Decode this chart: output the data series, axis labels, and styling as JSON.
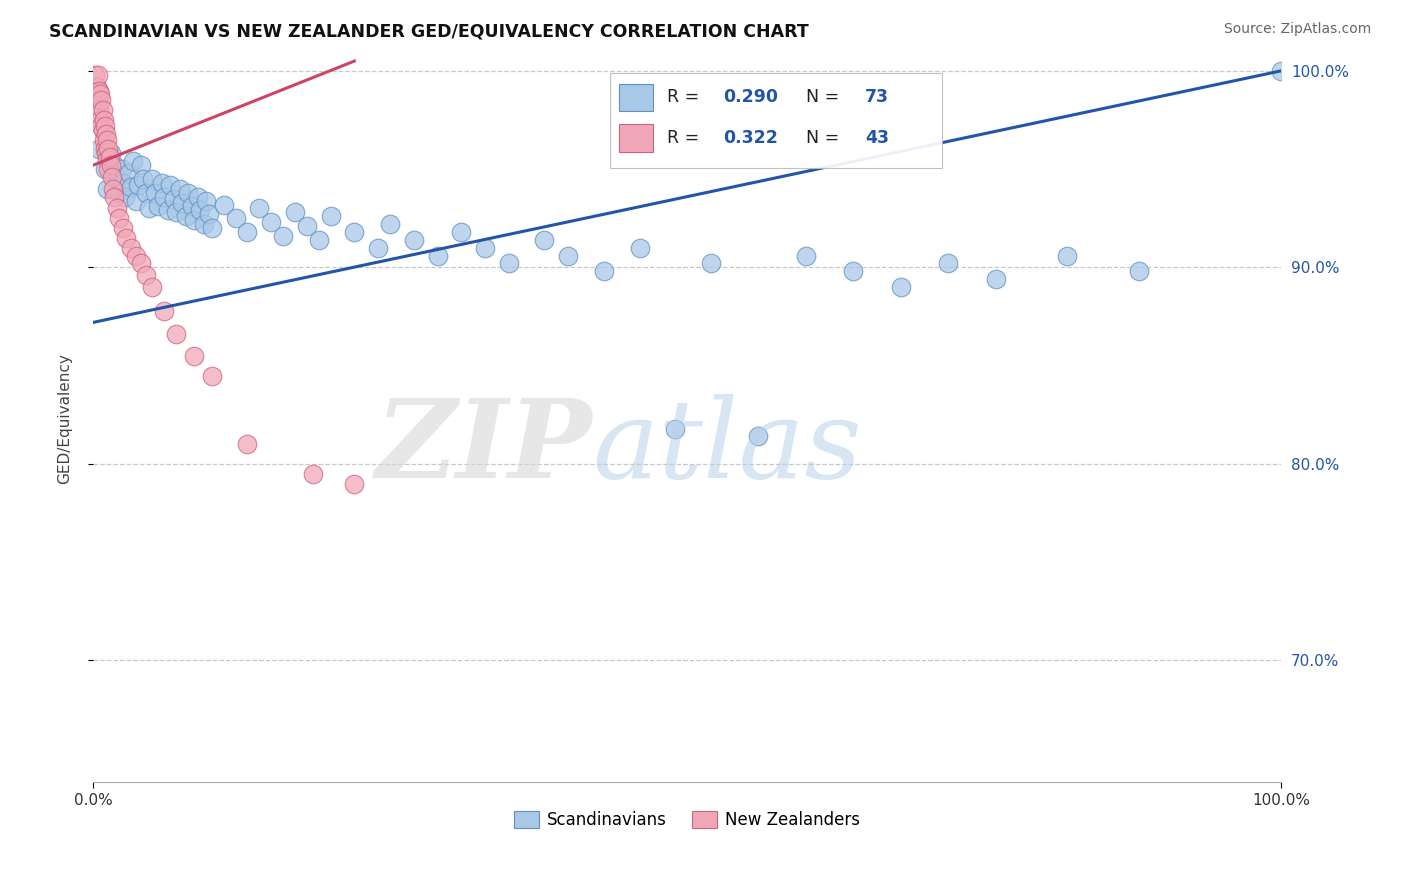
{
  "title": "SCANDINAVIAN VS NEW ZEALANDER GED/EQUIVALENCY CORRELATION CHART",
  "source": "Source: ZipAtlas.com",
  "ylabel": "GED/Equivalency",
  "xlim": [
    0.0,
    1.0
  ],
  "ylim": [
    0.638,
    1.008
  ],
  "yticks": [
    0.7,
    0.8,
    0.9,
    1.0
  ],
  "ytick_labels": [
    "70.0%",
    "80.0%",
    "90.0%",
    "100.0%"
  ],
  "xtick_vals": [
    0.0,
    1.0
  ],
  "xtick_labels": [
    "0.0%",
    "100.0%"
  ],
  "grid_color": "#c8c8c8",
  "background_color": "#ffffff",
  "blue_color": "#a8c8e8",
  "pink_color": "#f0a8b8",
  "blue_edge": "#6090c0",
  "pink_edge": "#d06080",
  "blue_line_color": "#2255aa",
  "pink_line_color": "#cc4466",
  "legend_R1": "0.290",
  "legend_N1": "73",
  "legend_R2": "0.322",
  "legend_N2": "43",
  "legend_label1": "Scandinavians",
  "legend_label2": "New Zealanders",
  "blue_trend_x": [
    0.0,
    1.0
  ],
  "blue_trend_y": [
    0.872,
    1.0
  ],
  "pink_trend_x": [
    0.0,
    0.22
  ],
  "pink_trend_y": [
    0.952,
    1.005
  ],
  "scandinavian_x": [
    0.005,
    0.01,
    0.012,
    0.015,
    0.018,
    0.02,
    0.022,
    0.024,
    0.025,
    0.027,
    0.03,
    0.032,
    0.034,
    0.036,
    0.038,
    0.04,
    0.042,
    0.045,
    0.047,
    0.05,
    0.052,
    0.055,
    0.058,
    0.06,
    0.063,
    0.065,
    0.068,
    0.07,
    0.073,
    0.075,
    0.078,
    0.08,
    0.083,
    0.085,
    0.088,
    0.09,
    0.093,
    0.095,
    0.098,
    0.1,
    0.11,
    0.12,
    0.13,
    0.14,
    0.15,
    0.16,
    0.17,
    0.18,
    0.19,
    0.2,
    0.22,
    0.24,
    0.25,
    0.27,
    0.29,
    0.31,
    0.33,
    0.35,
    0.38,
    0.4,
    0.43,
    0.46,
    0.49,
    0.52,
    0.56,
    0.6,
    0.64,
    0.68,
    0.72,
    0.76,
    0.82,
    0.88,
    1.0
  ],
  "scandinavian_y": [
    0.96,
    0.95,
    0.94,
    0.958,
    0.952,
    0.945,
    0.938,
    0.95,
    0.943,
    0.936,
    0.948,
    0.941,
    0.954,
    0.934,
    0.942,
    0.952,
    0.945,
    0.938,
    0.93,
    0.945,
    0.938,
    0.931,
    0.943,
    0.936,
    0.929,
    0.942,
    0.935,
    0.928,
    0.94,
    0.933,
    0.926,
    0.938,
    0.931,
    0.924,
    0.936,
    0.929,
    0.922,
    0.934,
    0.927,
    0.92,
    0.932,
    0.925,
    0.918,
    0.93,
    0.923,
    0.916,
    0.928,
    0.921,
    0.914,
    0.926,
    0.918,
    0.91,
    0.922,
    0.914,
    0.906,
    0.918,
    0.91,
    0.902,
    0.914,
    0.906,
    0.898,
    0.91,
    0.818,
    0.902,
    0.814,
    0.906,
    0.898,
    0.89,
    0.902,
    0.894,
    0.906,
    0.898,
    1.0
  ],
  "nz_x": [
    0.002,
    0.003,
    0.004,
    0.004,
    0.005,
    0.005,
    0.006,
    0.006,
    0.007,
    0.007,
    0.008,
    0.008,
    0.009,
    0.009,
    0.01,
    0.01,
    0.011,
    0.011,
    0.012,
    0.012,
    0.013,
    0.013,
    0.014,
    0.015,
    0.016,
    0.017,
    0.018,
    0.02,
    0.022,
    0.025,
    0.028,
    0.032,
    0.036,
    0.04,
    0.045,
    0.05,
    0.06,
    0.07,
    0.085,
    0.1,
    0.13,
    0.185,
    0.22
  ],
  "nz_y": [
    0.998,
    0.992,
    0.998,
    0.985,
    0.99,
    0.98,
    0.988,
    0.975,
    0.985,
    0.972,
    0.98,
    0.97,
    0.975,
    0.965,
    0.972,
    0.96,
    0.968,
    0.958,
    0.965,
    0.955,
    0.96,
    0.95,
    0.956,
    0.952,
    0.946,
    0.94,
    0.936,
    0.93,
    0.925,
    0.92,
    0.915,
    0.91,
    0.906,
    0.902,
    0.896,
    0.89,
    0.878,
    0.866,
    0.855,
    0.845,
    0.81,
    0.795,
    0.79
  ],
  "marker_size": 180
}
